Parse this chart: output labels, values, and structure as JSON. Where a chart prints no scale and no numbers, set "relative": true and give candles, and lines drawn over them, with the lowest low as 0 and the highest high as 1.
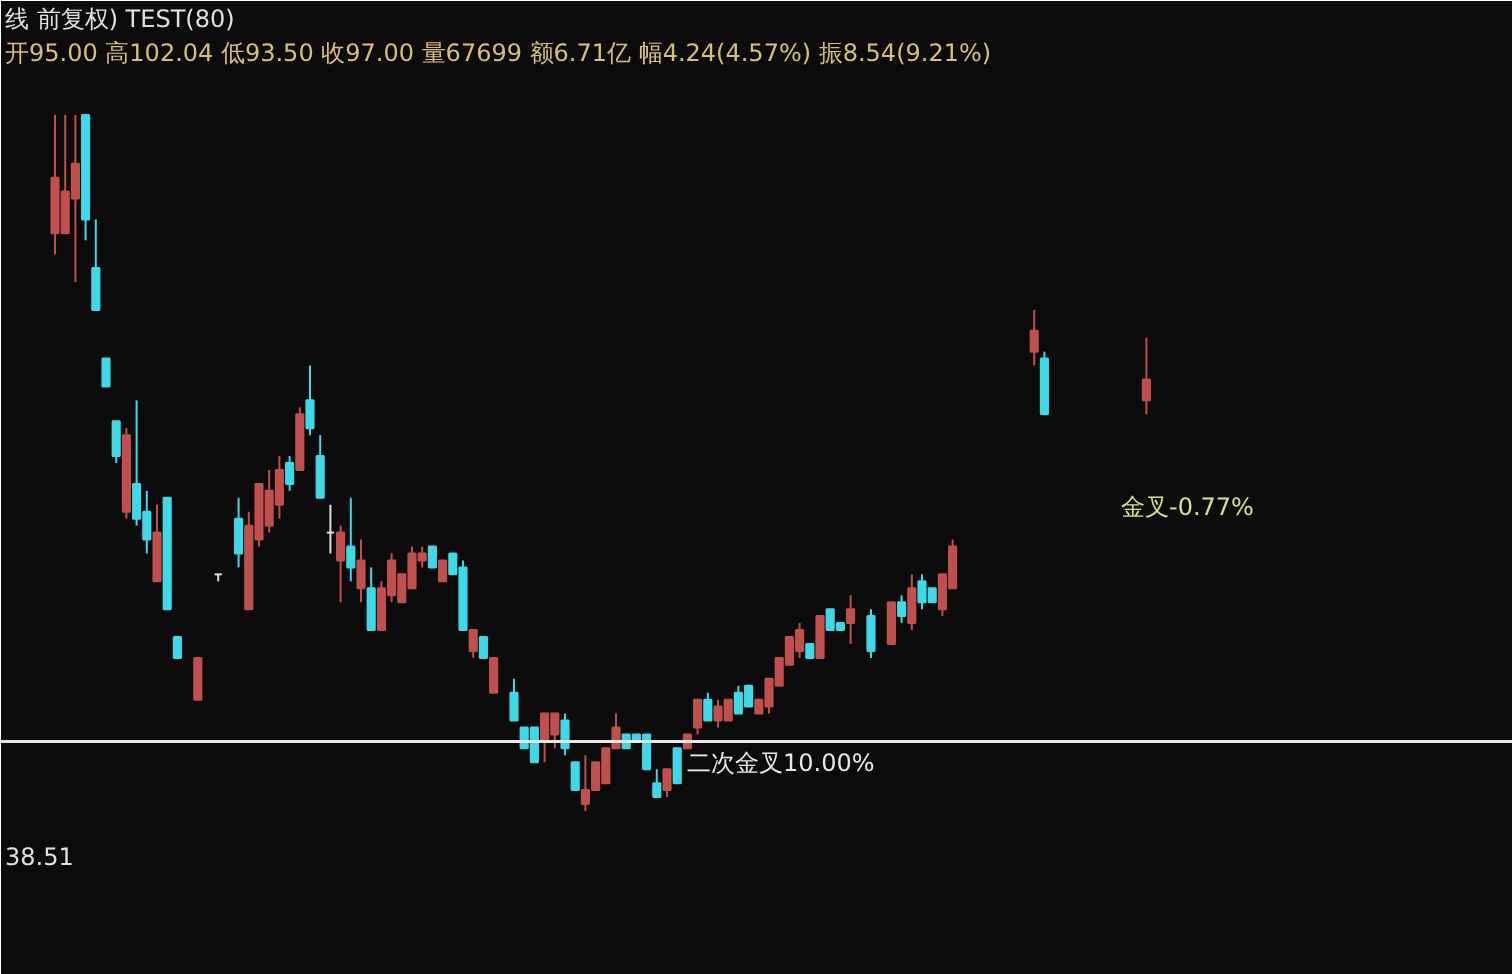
{
  "chart_data": {
    "type": "candlestick",
    "relative": true,
    "title": "线 前复权) TEST(80)",
    "subtitle": "开95.00 高102.04 低93.50 收97.00 量67699 额6.71亿 幅4.24(4.57%) 振8.54(9.21%)",
    "categories": [
      null,
      null,
      null,
      null,
      null,
      null,
      null,
      null,
      null,
      null,
      null,
      null,
      null,
      null,
      null,
      null,
      null,
      null,
      null,
      null,
      null,
      null,
      null,
      null,
      null,
      null,
      null,
      null,
      null,
      null,
      null,
      null,
      null,
      null,
      null,
      null,
      null,
      null,
      null,
      null,
      null,
      null,
      null,
      null,
      null,
      null,
      null,
      null,
      null,
      null,
      null,
      null,
      null,
      null,
      null,
      null,
      null,
      null,
      null,
      null,
      null,
      null,
      null,
      null,
      null,
      null,
      null,
      null,
      null,
      null,
      null,
      null,
      null,
      null,
      null,
      null,
      null,
      null,
      null,
      null,
      null,
      null,
      null,
      null,
      null,
      null,
      null,
      null,
      null,
      null,
      null,
      null,
      null,
      null,
      null,
      null,
      null,
      null,
      null,
      null,
      null,
      null,
      null,
      null,
      null,
      null,
      null,
      null
    ],
    "ohlc": [
      [
        0.83,
        1.0,
        0.8,
        0.91
      ],
      [
        0.83,
        1.0,
        0.83,
        0.89
      ],
      [
        0.88,
        1.0,
        0.76,
        0.93
      ],
      [
        1.0,
        1.0,
        0.82,
        0.85
      ],
      [
        0.78,
        0.85,
        0.72,
        0.72
      ],
      [
        0.65,
        0.65,
        0.61,
        0.61
      ],
      [
        0.56,
        0.56,
        0.5,
        0.51
      ],
      [
        0.43,
        0.55,
        0.42,
        0.54
      ],
      [
        0.47,
        0.59,
        0.41,
        0.42
      ],
      [
        0.43,
        0.46,
        0.37,
        0.39
      ],
      [
        0.33,
        0.44,
        0.33,
        0.4
      ],
      [
        0.45,
        0.45,
        0.29,
        0.29
      ],
      [
        0.25,
        0.25,
        0.22,
        0.22
      ],
      null,
      [
        0.16,
        0.22,
        0.16,
        0.22
      ],
      null,
      [
        0.34,
        0.34,
        0.33,
        0.34
      ],
      null,
      [
        0.42,
        0.45,
        0.35,
        0.37
      ],
      [
        0.29,
        0.43,
        0.29,
        0.41
      ],
      [
        0.39,
        0.47,
        0.38,
        0.47
      ],
      [
        0.41,
        0.49,
        0.4,
        0.46
      ],
      [
        0.44,
        0.51,
        0.42,
        0.49
      ],
      [
        0.5,
        0.51,
        0.46,
        0.47
      ],
      [
        0.49,
        0.58,
        0.49,
        0.57
      ],
      [
        0.59,
        0.64,
        0.54,
        0.55
      ],
      [
        0.51,
        0.54,
        0.45,
        0.45
      ],
      [
        0.4,
        0.44,
        0.37,
        0.4
      ],
      [
        0.36,
        0.41,
        0.3,
        0.4
      ],
      [
        0.38,
        0.45,
        0.33,
        0.35
      ],
      [
        0.32,
        0.39,
        0.3,
        0.36
      ],
      [
        0.32,
        0.35,
        0.26,
        0.26
      ],
      [
        0.26,
        0.33,
        0.26,
        0.32
      ],
      [
        0.31,
        0.37,
        0.3,
        0.36
      ],
      [
        0.3,
        0.34,
        0.3,
        0.34
      ],
      [
        0.32,
        0.38,
        0.32,
        0.37
      ],
      [
        0.36,
        0.38,
        0.35,
        0.37
      ],
      [
        0.38,
        0.38,
        0.35,
        0.35
      ],
      [
        0.33,
        0.36,
        0.33,
        0.36
      ],
      [
        0.37,
        0.37,
        0.34,
        0.34
      ],
      [
        0.35,
        0.36,
        0.26,
        0.26
      ],
      [
        0.23,
        0.26,
        0.22,
        0.26
      ],
      [
        0.25,
        0.25,
        0.22,
        0.22
      ],
      [
        0.17,
        0.22,
        0.17,
        0.22
      ],
      null,
      [
        0.17,
        0.19,
        0.13,
        0.13
      ],
      [
        0.12,
        0.12,
        0.09,
        0.09
      ],
      [
        0.12,
        0.12,
        0.07,
        0.07
      ],
      [
        0.1,
        0.14,
        0.07,
        0.14
      ],
      [
        0.11,
        0.14,
        0.09,
        0.14
      ],
      [
        0.13,
        0.14,
        0.08,
        0.09
      ],
      [
        0.07,
        0.07,
        0.03,
        0.03
      ],
      [
        0.01,
        0.08,
        0.0,
        0.03
      ],
      [
        0.03,
        0.07,
        0.03,
        0.07
      ],
      [
        0.04,
        0.09,
        0.04,
        0.09
      ],
      [
        0.09,
        0.14,
        0.09,
        0.12
      ],
      [
        0.11,
        0.11,
        0.09,
        0.09
      ],
      [
        0.11,
        0.11,
        0.1,
        0.1
      ],
      [
        0.11,
        0.11,
        0.06,
        0.06
      ],
      [
        0.04,
        0.06,
        0.02,
        0.02
      ],
      [
        0.03,
        0.06,
        0.02,
        0.06
      ],
      [
        0.09,
        0.09,
        0.04,
        0.04
      ],
      [
        0.09,
        0.11,
        0.09,
        0.11
      ],
      [
        0.12,
        0.16,
        0.11,
        0.16
      ],
      [
        0.16,
        0.17,
        0.13,
        0.13
      ],
      [
        0.13,
        0.16,
        0.12,
        0.15
      ],
      [
        0.13,
        0.16,
        0.13,
        0.16
      ],
      [
        0.17,
        0.18,
        0.14,
        0.14
      ],
      [
        0.18,
        0.18,
        0.15,
        0.15
      ],
      [
        0.14,
        0.16,
        0.14,
        0.16
      ],
      [
        0.15,
        0.19,
        0.14,
        0.19
      ],
      [
        0.18,
        0.22,
        0.18,
        0.22
      ],
      [
        0.21,
        0.25,
        0.21,
        0.25
      ],
      [
        0.23,
        0.27,
        0.22,
        0.26
      ],
      [
        0.24,
        0.24,
        0.22,
        0.22
      ],
      [
        0.22,
        0.28,
        0.22,
        0.28
      ],
      [
        0.29,
        0.29,
        0.26,
        0.26
      ],
      [
        0.27,
        0.27,
        0.26,
        0.26
      ],
      [
        0.27,
        0.31,
        0.24,
        0.29
      ],
      null,
      [
        0.28,
        0.29,
        0.22,
        0.23
      ],
      null,
      [
        0.24,
        0.3,
        0.24,
        0.3
      ],
      [
        0.3,
        0.31,
        0.27,
        0.28
      ],
      [
        0.27,
        0.34,
        0.26,
        0.32
      ],
      [
        0.33,
        0.34,
        0.29,
        0.3
      ],
      [
        0.32,
        0.32,
        0.3,
        0.3
      ],
      [
        0.29,
        0.34,
        0.28,
        0.34
      ],
      [
        0.32,
        0.39,
        0.32,
        0.38
      ],
      null,
      null,
      null,
      null,
      null,
      null,
      null,
      [
        0.66,
        0.72,
        0.64,
        0.69
      ],
      [
        0.65,
        0.66,
        0.57,
        0.57
      ],
      null,
      null,
      null,
      null,
      null,
      null,
      null,
      null,
      null,
      [
        0.59,
        0.68,
        0.57,
        0.62
      ]
    ],
    "ref_lines": [
      {
        "axis": "y",
        "value": 0.1,
        "label": "二次金叉10.00%",
        "color": "#e8e8e8"
      }
    ],
    "annotations": [
      "金叉-0.77%",
      "38.51"
    ]
  }
}
